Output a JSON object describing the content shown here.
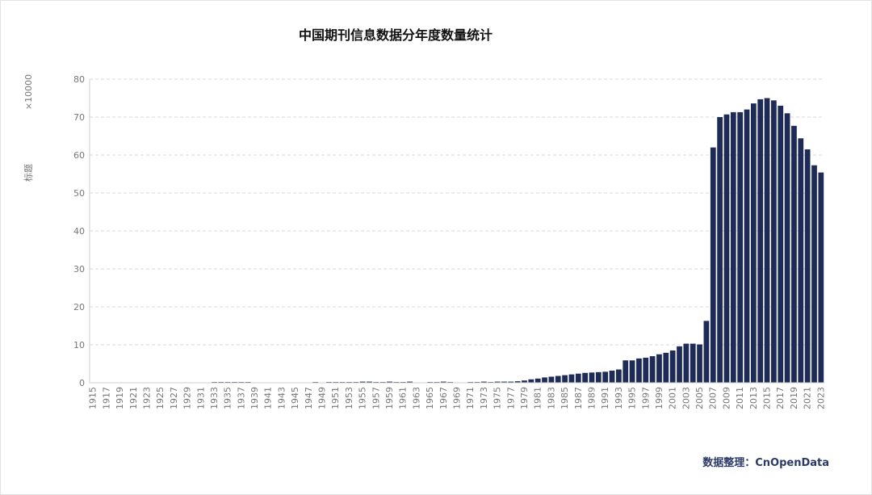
{
  "chart_data": {
    "type": "bar",
    "title": "中国期刊信息数据分年度数量统计",
    "ylabel": "标题",
    "yunit": "×10000",
    "source": "数据整理：CnOpenData",
    "bar_color": "#1f2b57",
    "ylim": [
      0,
      80
    ],
    "yticks": [
      0,
      10,
      20,
      30,
      40,
      50,
      60,
      70,
      80
    ],
    "grid": true,
    "x_start": 1915,
    "x_end": 2023,
    "x_tick_step": 2,
    "values": [
      0,
      0,
      0,
      0,
      0,
      0,
      0,
      0,
      0,
      0,
      0,
      0,
      0,
      0,
      0,
      0,
      0,
      0,
      0.2,
      0.2,
      0.2,
      0.2,
      0.2,
      0.2,
      0.1,
      0,
      0,
      0,
      0,
      0,
      0,
      0,
      0.1,
      0.2,
      0.1,
      0.2,
      0.2,
      0.2,
      0.2,
      0.2,
      0.3,
      0.3,
      0.2,
      0.2,
      0.3,
      0.2,
      0.2,
      0.3,
      0.1,
      0.1,
      0.2,
      0.2,
      0.3,
      0.2,
      0.1,
      0.1,
      0.2,
      0.2,
      0.3,
      0.2,
      0.3,
      0.3,
      0.3,
      0.4,
      0.6,
      0.9,
      1.1,
      1.4,
      1.6,
      1.8,
      2.0,
      2.2,
      2.4,
      2.6,
      2.7,
      2.8,
      2.9,
      3.2,
      3.5,
      5.9,
      5.9,
      6.4,
      6.6,
      7.0,
      7.5,
      7.9,
      8.5,
      9.6,
      10.3,
      10.3,
      10.1,
      16.3,
      62.0,
      70.0,
      70.7,
      71.3,
      71.3,
      72.0,
      73.6,
      74.7,
      75.0,
      74.4,
      73.0,
      71.0,
      67.7,
      64.4,
      61.5,
      57.3,
      55.4
    ]
  }
}
